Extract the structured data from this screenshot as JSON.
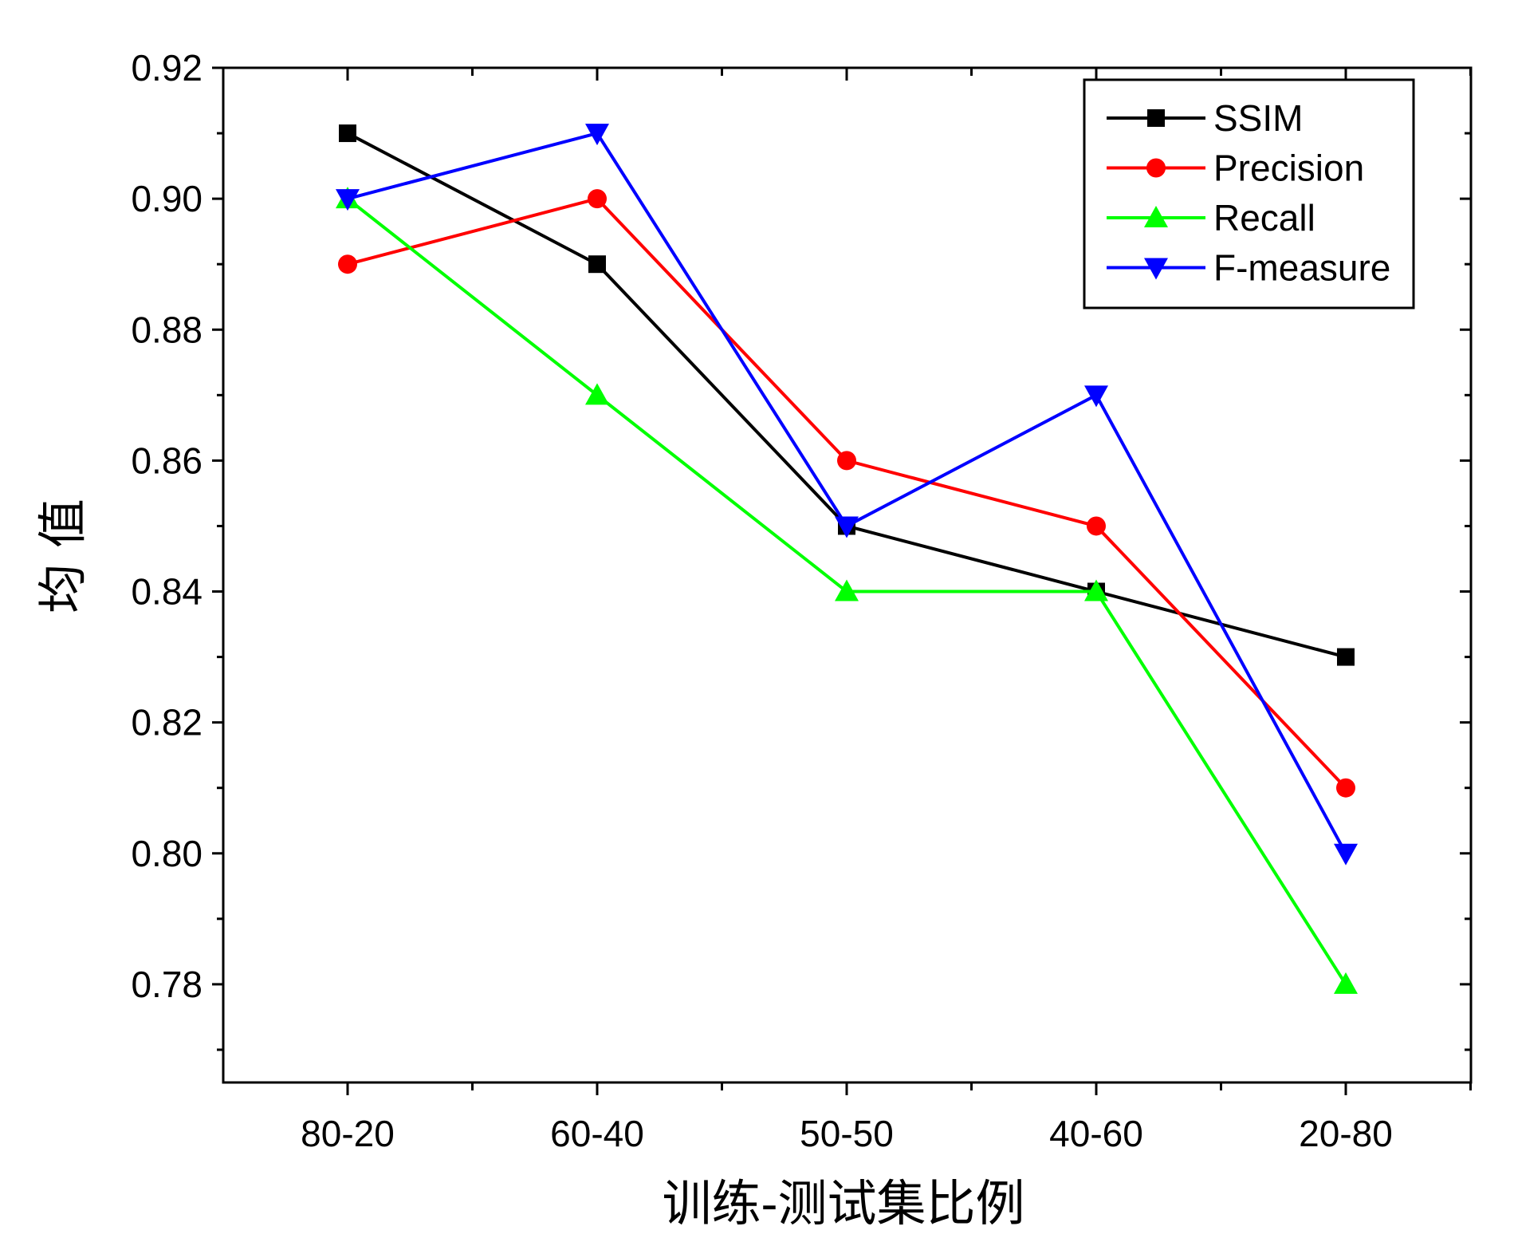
{
  "chart_data": {
    "type": "line",
    "title": "",
    "xlabel": "训练-测试集比例",
    "ylabel": "均 值",
    "categories": [
      "80-20",
      "60-40",
      "50-50",
      "40-60",
      "20-80"
    ],
    "ylim": [
      0.765,
      0.92
    ],
    "yticks": [
      "0.78",
      "0.80",
      "0.82",
      "0.84",
      "0.86",
      "0.88",
      "0.90",
      "0.92"
    ],
    "grid": false,
    "legend_position": "top-right",
    "series": [
      {
        "name": "SSIM",
        "values": [
          0.91,
          0.89,
          0.85,
          0.84,
          0.83
        ],
        "color": "#000000",
        "marker": "square"
      },
      {
        "name": "Precision",
        "values": [
          0.89,
          0.9,
          0.86,
          0.85,
          0.81
        ],
        "color": "#ff0000",
        "marker": "circle"
      },
      {
        "name": "Recall",
        "values": [
          0.9,
          0.87,
          0.84,
          0.84,
          0.78
        ],
        "color": "#00ff00",
        "marker": "triangle-up"
      },
      {
        "name": "F-measure",
        "values": [
          0.9,
          0.91,
          0.85,
          0.87,
          0.8
        ],
        "color": "#0000ff",
        "marker": "triangle-down"
      }
    ]
  }
}
